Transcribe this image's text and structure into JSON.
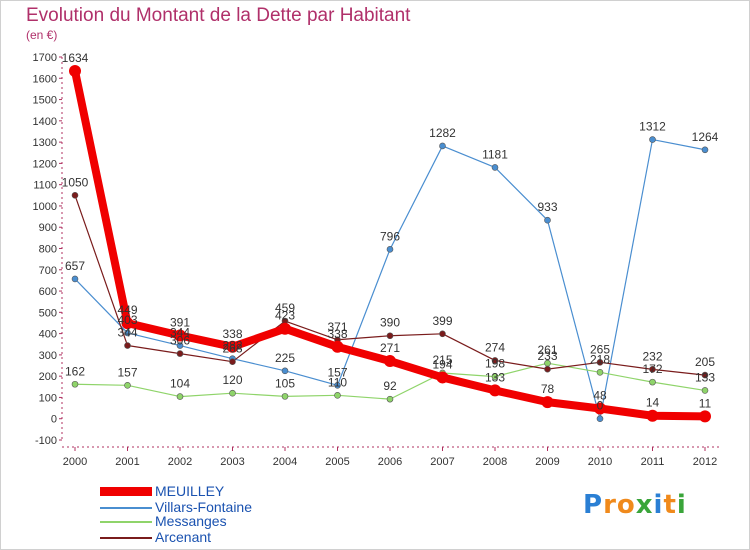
{
  "header": {
    "title": "Evolution du Montant de la Dette par Habitant",
    "subtitle": "(en €)"
  },
  "logo": {
    "text": "Proxiti",
    "letters": [
      "P",
      "r",
      "o",
      "x",
      "i",
      "t",
      "i"
    ],
    "letter_colors": [
      "#2a7fd4",
      "#f08a1c",
      "#f08a1c",
      "#3aa53a",
      "#2a7fd4",
      "#f08a1c",
      "#3aa53a"
    ]
  },
  "chart_data": {
    "type": "line",
    "title": "Evolution du Montant de la Dette par Habitant",
    "subtitle": "(en €)",
    "xlabel": "",
    "ylabel": "",
    "x": [
      "2000",
      "2001",
      "2002",
      "2003",
      "2004",
      "2005",
      "2006",
      "2007",
      "2008",
      "2009",
      "2010",
      "2011",
      "2012"
    ],
    "ylim": [
      -100,
      1700
    ],
    "yticks": [
      -100,
      0,
      100,
      200,
      300,
      400,
      500,
      600,
      700,
      800,
      900,
      1000,
      1100,
      1200,
      1300,
      1400,
      1500,
      1600,
      1700
    ],
    "grid": false,
    "legend_position": "bottom-left",
    "series": [
      {
        "name": "Villars-Fontaine",
        "color": "#4a8ed0",
        "values": [
          657,
          403,
          344,
          282,
          225,
          157,
          796,
          1282,
          1181,
          933,
          0,
          1312,
          1264
        ],
        "labels": [
          "657",
          "403",
          "344",
          "282",
          "225",
          "157",
          "796",
          "1282",
          "1181",
          "933",
          "0",
          "1312",
          "1264"
        ]
      },
      {
        "name": "Messanges",
        "color": "#8fd46a",
        "values": [
          162,
          157,
          104,
          120,
          105,
          110,
          92,
          215,
          198,
          261,
          218,
          172,
          133
        ],
        "labels": [
          "162",
          "157",
          "104",
          "120",
          "105",
          "110",
          "92",
          "215",
          "198",
          "261",
          "218",
          "172",
          "133"
        ]
      },
      {
        "name": "Arcenant",
        "color": "#7a1c1c",
        "values": [
          1050,
          344,
          306,
          268,
          459,
          371,
          390,
          399,
          274,
          233,
          265,
          232,
          205
        ],
        "labels": [
          "1050",
          "344",
          "306",
          "268",
          "459",
          "371",
          "390",
          "399",
          "274",
          "233",
          "265",
          "232",
          "205"
        ]
      },
      {
        "name": "MEUILLEY",
        "color": "#f00000",
        "values": [
          1634,
          449,
          391,
          338,
          423,
          338,
          271,
          194,
          133,
          78,
          48,
          14,
          11
        ],
        "labels": [
          "1634",
          "449",
          "391",
          "338",
          "423",
          "338",
          "271",
          "194",
          "133",
          "78",
          "48",
          "14",
          "11"
        ]
      }
    ]
  },
  "legend": {
    "items": [
      {
        "label": "MEUILLEY",
        "color": "#f00000",
        "swatch": "thick"
      },
      {
        "label": "Villars-Fontaine",
        "color": "#4a8ed0",
        "swatch": "thin"
      },
      {
        "label": "Messanges",
        "color": "#8fd46a",
        "swatch": "thin"
      },
      {
        "label": "Arcenant",
        "color": "#7a1c1c",
        "swatch": "thin"
      }
    ]
  }
}
